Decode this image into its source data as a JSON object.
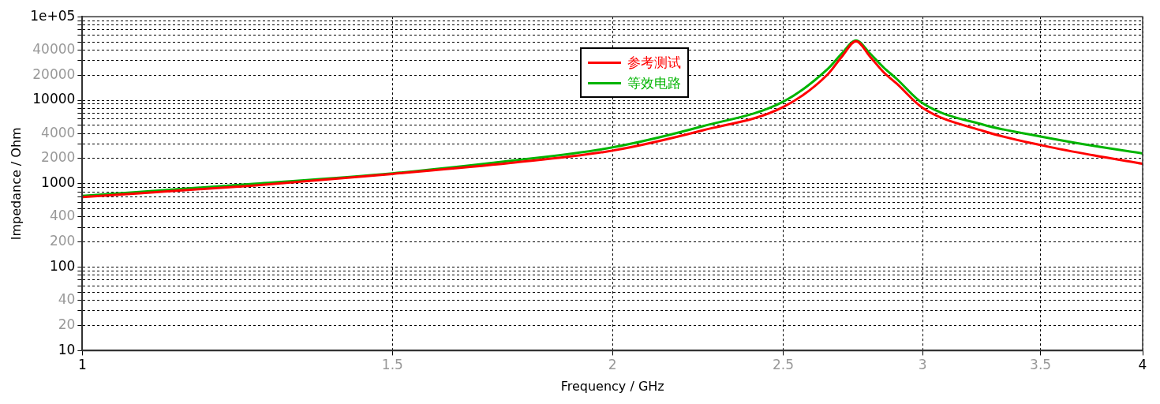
{
  "chart_data": {
    "type": "line",
    "xlabel": "Frequency / GHz",
    "ylabel": "Impedance / Ohm",
    "log": "xy",
    "grid": true,
    "legend": "top",
    "marker": "none",
    "line_style": "solid",
    "x": [
      1,
      1.25,
      1.5,
      1.75,
      2,
      2.25,
      2.5,
      2.65,
      2.7,
      2.75,
      2.8,
      2.85,
      2.9,
      3,
      3.25,
      3.5,
      3.75,
      4
    ],
    "series": [
      {
        "name": "参考测试",
        "color": "#ff0000",
        "values": [
          690,
          950,
          1310,
          1770,
          2490,
          4350,
          8280,
          20400,
          33500,
          51000,
          33500,
          21800,
          15800,
          8100,
          4260,
          2900,
          2190,
          1730
        ]
      },
      {
        "name": "等效电路",
        "color": "#00b400",
        "values": [
          715,
          995,
          1330,
          1880,
          2720,
          4870,
          9600,
          23700,
          36500,
          52000,
          36500,
          24800,
          18000,
          9200,
          5070,
          3680,
          2840,
          2300
        ]
      }
    ],
    "xlim": [
      1,
      4
    ],
    "xticks": [
      1,
      1.5,
      2,
      2.5,
      3,
      3.5,
      4
    ],
    "ylim": [
      10,
      100000
    ],
    "yticks": [
      10,
      20,
      {
        "value": 30,
        "label": null
      },
      40,
      {
        "value": 50,
        "label": null
      },
      {
        "value": 60,
        "label": null
      },
      {
        "value": 70,
        "label": null
      },
      {
        "value": 80,
        "label": null
      },
      {
        "value": 90,
        "label": null
      },
      100,
      200,
      {
        "value": 300,
        "label": null
      },
      400,
      {
        "value": 500,
        "label": null
      },
      {
        "value": 600,
        "label": null
      },
      {
        "value": 700,
        "label": null
      },
      {
        "value": 800,
        "label": null
      },
      {
        "value": 900,
        "label": null
      },
      1000,
      2000,
      {
        "value": 3000,
        "label": null
      },
      4000,
      {
        "value": 5000,
        "label": null
      },
      {
        "value": 6000,
        "label": null
      },
      {
        "value": 7000,
        "label": null
      },
      {
        "value": 8000,
        "label": null
      },
      {
        "value": 9000,
        "label": null
      },
      10000,
      20000,
      {
        "value": 30000,
        "label": null
      },
      40000,
      {
        "value": 50000,
        "label": null
      },
      {
        "value": 60000,
        "label": null
      },
      {
        "value": 70000,
        "label": null
      },
      {
        "value": 80000,
        "label": null
      },
      {
        "value": 90000,
        "label": null
      },
      {
        "value": 100000,
        "label": "1e+05"
      }
    ]
  }
}
